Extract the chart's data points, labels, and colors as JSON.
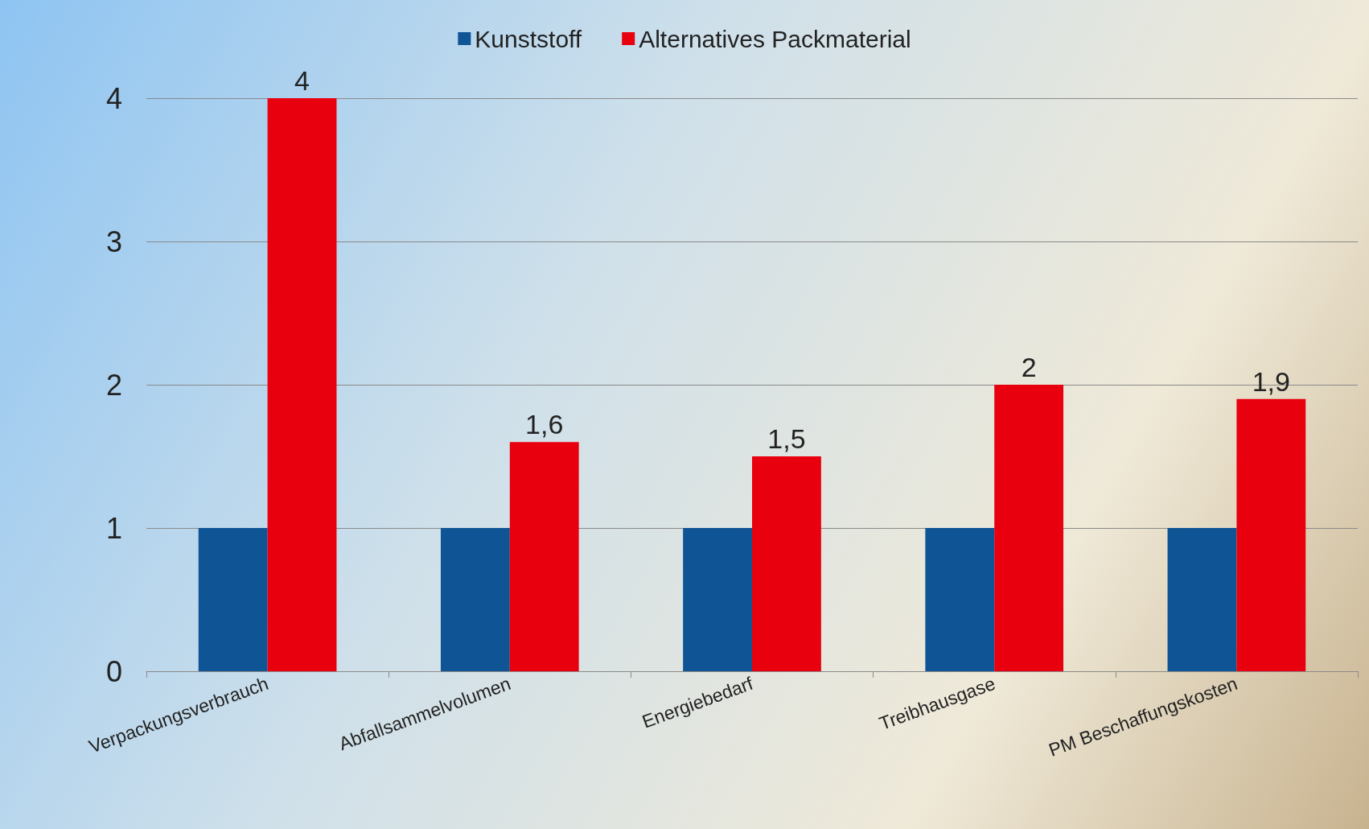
{
  "chart_data": {
    "type": "bar",
    "categories": [
      "Verpackungsverbrauch",
      "Abfallsammelvolumen",
      "Energiebedarf",
      "Treibhausgase",
      "PM Beschaffungskosten"
    ],
    "series": [
      {
        "name": "Kunststoff",
        "color": "#0f5494",
        "values": [
          1,
          1,
          1,
          1,
          1
        ]
      },
      {
        "name": "Alternatives Packmaterial",
        "color": "#e8000f",
        "values": [
          4,
          1.6,
          1.5,
          2,
          1.9
        ],
        "value_labels": [
          "4",
          "1,6",
          "1,5",
          "2",
          "1,9"
        ]
      }
    ],
    "ylim": [
      0,
      4
    ],
    "yticks": [
      0,
      1,
      2,
      3,
      4
    ],
    "grid": "y",
    "legend": "top"
  }
}
